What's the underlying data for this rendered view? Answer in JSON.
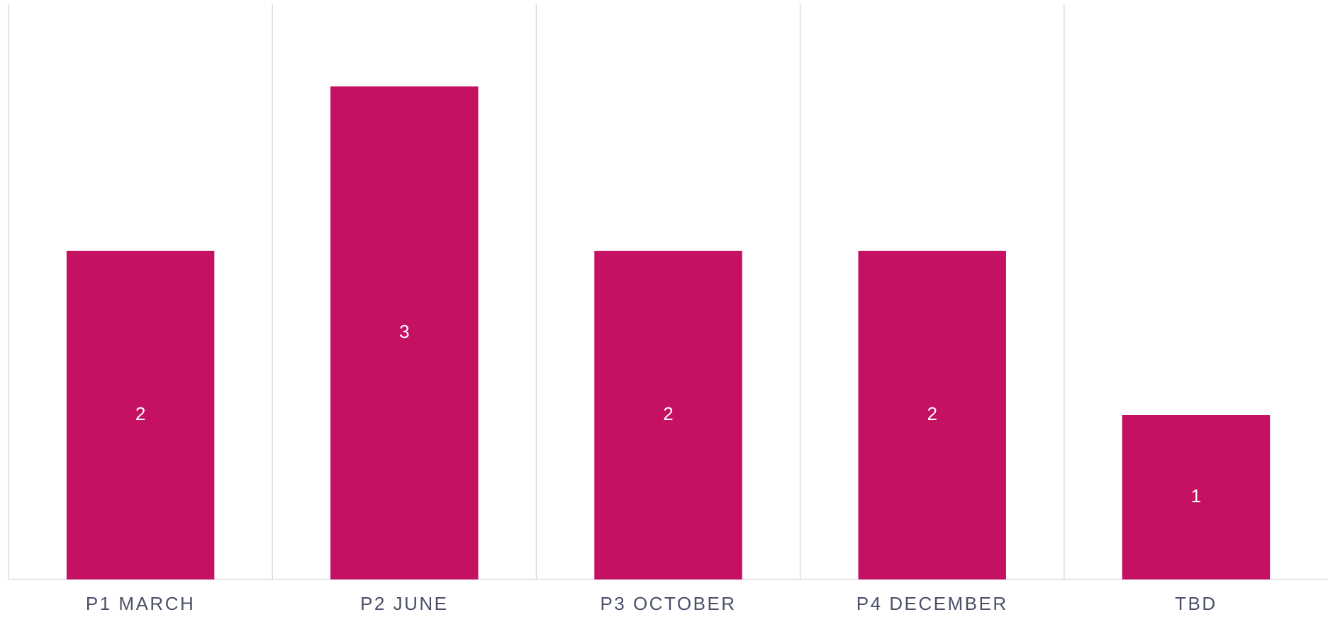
{
  "chart_data": {
    "type": "bar",
    "categories": [
      "P1 MARCH",
      "P2 JUNE",
      "P3 OCTOBER",
      "P4 DECEMBER",
      "TBD"
    ],
    "values": [
      2,
      3,
      2,
      2,
      1
    ],
    "color": "#c41162",
    "ylim": [
      0,
      3.5
    ],
    "grid": true
  }
}
